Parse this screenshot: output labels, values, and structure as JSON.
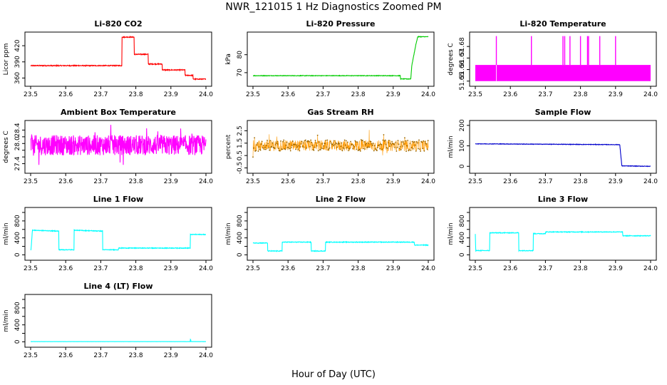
{
  "main_title": "NWR_121015  1 Hz Diagnostics Zoomed PM",
  "x_label": "Hour of Day (UTC)",
  "x_ticks": [
    "23.5",
    "23.6",
    "23.7",
    "23.8",
    "23.9",
    "24.0"
  ],
  "chart_data": [
    {
      "type": "line",
      "title": "Li-820 CO2",
      "ylabel": "Licor ppm",
      "color": "#ff0000",
      "xlim": [
        23.5,
        24.0
      ],
      "ylim": [
        350,
        440
      ],
      "yticks": [
        360,
        390,
        420
      ],
      "ytick_labels": [
        "360",
        "390",
        "420"
      ],
      "series": [
        {
          "x": [
            23.5,
            23.76,
            23.7601,
            23.795,
            23.7951,
            23.835,
            23.8351,
            23.875,
            23.8751,
            23.94,
            23.9401,
            23.963,
            23.9631,
            24.0
          ],
          "values": [
            383,
            383,
            436,
            436,
            404,
            404,
            386,
            386,
            375,
            375,
            365,
            365,
            358,
            358
          ]
        }
      ],
      "noise": 0.8
    },
    {
      "type": "line",
      "title": "Li-820 Pressure",
      "ylabel": "kPa",
      "color": "#00cc00",
      "xlim": [
        23.5,
        24.0
      ],
      "ylim": [
        64,
        91
      ],
      "yticks": [
        70,
        80
      ],
      "ytick_labels": [
        "70",
        "80"
      ],
      "series": [
        {
          "x": [
            23.5,
            23.92,
            23.921,
            23.95,
            23.953,
            23.965,
            23.97,
            24.0
          ],
          "values": [
            68.3,
            68.3,
            66.5,
            66.5,
            74,
            86,
            90,
            90
          ]
        }
      ],
      "noise": 0.15
    },
    {
      "type": "line",
      "title": "Li-820 Temperature",
      "ylabel": "degrees C",
      "color": "#ff00ff",
      "xlim": [
        23.5,
        24.0
      ],
      "ylim": [
        51.648,
        51.69
      ],
      "yticks": [
        51.65,
        51.66,
        51.67,
        51.68
      ],
      "ytick_labels": [
        "51.65",
        "51.66",
        "51.67",
        "51.68"
      ],
      "band": [
        51.65,
        51.664
      ],
      "spikes_x": [
        23.56,
        23.66,
        23.75,
        23.755,
        23.77,
        23.8,
        23.82,
        23.823,
        23.855,
        23.9
      ],
      "spike_top": 51.689
    },
    {
      "type": "line",
      "title": "Ambient Box Temperature",
      "ylabel": "degrees C",
      "color": "#ff00ff",
      "xlim": [
        23.5,
        24.0
      ],
      "ylim": [
        27.2,
        28.6
      ],
      "yticks": [
        27.4,
        27.6,
        27.8,
        28.0,
        28.2,
        28.4
      ],
      "ytick_labels": [
        "27.4",
        "",
        "",
        "28.0",
        "",
        "28.4"
      ],
      "series": [
        {
          "x": [
            23.5,
            24.0
          ],
          "values": [
            27.95,
            27.95
          ]
        }
      ],
      "noise": 0.3
    },
    {
      "type": "scatter",
      "title": "Gas Stream RH",
      "ylabel": "percent",
      "color": "#ff9900",
      "xlim": [
        23.5,
        24.0
      ],
      "ylim": [
        -0.7,
        3.1
      ],
      "yticks": [
        -0.5,
        0.5,
        1.5,
        2.5
      ],
      "ytick_labels": [
        "-0.5",
        "0.5",
        "1.5",
        "2.5"
      ],
      "series": [
        {
          "x": [
            23.5,
            24.0
          ],
          "values": [
            1.3,
            1.3
          ]
        }
      ],
      "noise": 0.45
    },
    {
      "type": "line",
      "title": "Sample Flow",
      "ylabel": "ml/min",
      "color": "#0000cc",
      "xlim": [
        23.5,
        24.0
      ],
      "ylim": [
        -20,
        210
      ],
      "yticks": [
        0,
        100,
        200
      ],
      "ytick_labels": [
        "0",
        "100",
        "200"
      ],
      "series": [
        {
          "x": [
            23.5,
            23.9,
            23.912,
            23.918,
            24.0
          ],
          "values": [
            110,
            106,
            106,
            2,
            0
          ]
        }
      ],
      "noise": 1.2
    },
    {
      "type": "line",
      "title": "Line 1 Flow",
      "ylabel": "ml/min",
      "color": "#00ffff",
      "xlim": [
        23.5,
        24.0
      ],
      "ylim": [
        -60,
        1050
      ],
      "yticks": [
        0,
        200,
        400,
        600,
        800,
        1000
      ],
      "ytick_labels": [
        "0",
        "400",
        "800"
      ],
      "ytick_label_values": [
        0,
        400,
        800
      ],
      "series": [
        {
          "x": [
            23.5,
            23.501,
            23.505,
            23.58,
            23.5801,
            23.624,
            23.6241,
            23.705,
            23.7051,
            23.75,
            23.7501,
            23.955,
            23.9551,
            24.0
          ],
          "values": [
            120,
            120,
            580,
            560,
            120,
            120,
            580,
            560,
            120,
            120,
            160,
            160,
            480,
            480
          ]
        }
      ],
      "noise": 8
    },
    {
      "type": "line",
      "title": "Line 2 Flow",
      "ylabel": "ml/min",
      "color": "#00ffff",
      "xlim": [
        23.5,
        24.0
      ],
      "ylim": [
        -60,
        1050
      ],
      "yticks": [
        0,
        200,
        400,
        600,
        800,
        1000
      ],
      "ytick_labels": [
        "0",
        "400",
        "800"
      ],
      "ytick_label_values": [
        0,
        400,
        800
      ],
      "series": [
        {
          "x": [
            23.5,
            23.542,
            23.5421,
            23.583,
            23.5831,
            23.666,
            23.6661,
            23.707,
            23.7071,
            23.96,
            23.9601,
            24.0
          ],
          "values": [
            280,
            280,
            90,
            90,
            300,
            300,
            90,
            90,
            300,
            300,
            230,
            230
          ]
        }
      ],
      "noise": 8
    },
    {
      "type": "line",
      "title": "Line 3 Flow",
      "ylabel": "ml/min",
      "color": "#00ffff",
      "xlim": [
        23.5,
        24.0
      ],
      "ylim": [
        -60,
        1050
      ],
      "yticks": [
        0,
        200,
        400,
        600,
        800,
        1000
      ],
      "ytick_labels": [
        "0",
        "400",
        "800"
      ],
      "ytick_label_values": [
        0,
        400,
        800
      ],
      "series": [
        {
          "x": [
            23.5,
            23.501,
            23.502,
            23.541,
            23.5411,
            23.624,
            23.6241,
            23.665,
            23.6651,
            23.7,
            23.7001,
            23.92,
            23.9201,
            24.0
          ],
          "values": [
            500,
            100,
            100,
            100,
            520,
            520,
            100,
            100,
            500,
            500,
            540,
            540,
            450,
            450
          ]
        }
      ],
      "noise": 8
    },
    {
      "type": "line",
      "title": "Line 4 (LT) Flow",
      "ylabel": "ml/min",
      "color": "#00ffff",
      "xlim": [
        23.5,
        24.0
      ],
      "ylim": [
        -60,
        1050
      ],
      "yticks": [
        0,
        200,
        400,
        600,
        800,
        1000
      ],
      "ytick_labels": [
        "0",
        "400",
        "800"
      ],
      "ytick_label_values": [
        0,
        400,
        800
      ],
      "series": [
        {
          "x": [
            23.5,
            23.955,
            23.956,
            23.957,
            23.958,
            24.0
          ],
          "values": [
            5,
            5,
            80,
            10,
            5,
            5
          ]
        }
      ],
      "noise": 1
    }
  ]
}
